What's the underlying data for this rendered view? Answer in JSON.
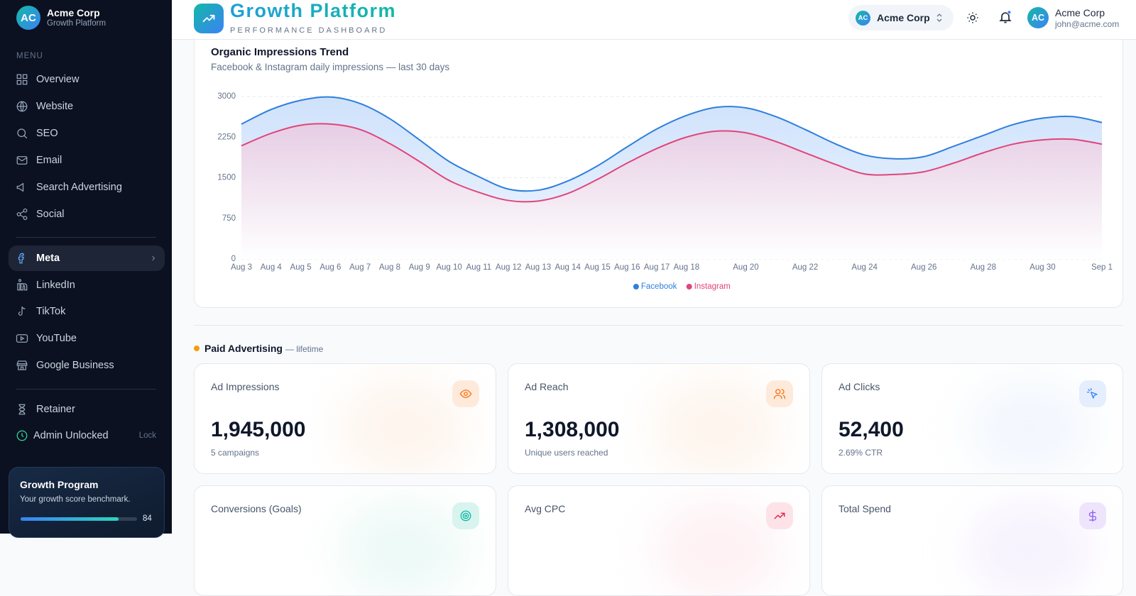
{
  "sidebar": {
    "brand": {
      "avatar": "AC",
      "name": "Acme Corp",
      "subtitle": "Growth Platform"
    },
    "menu_label": "MENU",
    "items": [
      {
        "label": "Overview"
      },
      {
        "label": "Website"
      },
      {
        "label": "SEO"
      },
      {
        "label": "Email"
      },
      {
        "label": "Search Advertising"
      },
      {
        "label": "Social"
      },
      {
        "label": "Meta",
        "active": true
      },
      {
        "label": "LinkedIn"
      },
      {
        "label": "TikTok"
      },
      {
        "label": "YouTube"
      },
      {
        "label": "Google Business"
      }
    ],
    "footer_items": [
      {
        "label": "Retainer"
      }
    ],
    "admin": {
      "label": "Admin Unlocked",
      "action": "Lock"
    },
    "growth_card": {
      "title": "Growth Program",
      "text": "Your growth score benchmark.",
      "score": 84
    }
  },
  "header": {
    "title": "Growth Platform",
    "subtitle": "PERFORMANCE DASHBOARD",
    "org": {
      "avatar": "AC",
      "name": "Acme Corp"
    },
    "user": {
      "avatar": "AC",
      "name": "Acme Corp",
      "email": "john@acme.com"
    }
  },
  "chart_data": {
    "type": "area",
    "title": "Organic Impressions Trend",
    "subtitle": "Facebook & Instagram daily impressions — last 30 days",
    "categories": [
      "Aug 3",
      "Aug 4",
      "Aug 5",
      "Aug 6",
      "Aug 7",
      "Aug 8",
      "Aug 9",
      "Aug 10",
      "Aug 11",
      "Aug 12",
      "Aug 13",
      "Aug 14",
      "Aug 15",
      "Aug 16",
      "Aug 17",
      "Aug 18",
      null,
      "Aug 20",
      null,
      "Aug 22",
      null,
      "Aug 24",
      null,
      "Aug 26",
      null,
      "Aug 28",
      null,
      "Aug 30",
      null,
      "Sep 1"
    ],
    "series": [
      {
        "name": "Facebook",
        "color": "#2f7fdc",
        "values": [
          2490,
          2760,
          2930,
          2990,
          2870,
          2590,
          2200,
          1800,
          1520,
          1290,
          1270,
          1440,
          1720,
          2070,
          2400,
          2650,
          2800,
          2790,
          2630,
          2390,
          2130,
          1920,
          1850,
          1890,
          2080,
          2280,
          2480,
          2600,
          2630,
          2520
        ]
      },
      {
        "name": "Instagram",
        "color": "#e0457b",
        "values": [
          2090,
          2320,
          2470,
          2490,
          2390,
          2130,
          1800,
          1450,
          1230,
          1080,
          1070,
          1210,
          1470,
          1770,
          2040,
          2250,
          2360,
          2330,
          2170,
          1960,
          1750,
          1570,
          1560,
          1610,
          1770,
          1960,
          2120,
          2200,
          2210,
          2120
        ]
      }
    ],
    "ylim": [
      0,
      3000
    ],
    "yticks": [
      0,
      750,
      1500,
      2250,
      3000
    ],
    "grid": true,
    "legend": "bottom"
  },
  "paid": {
    "title": "Paid Advertising",
    "suffix": "— lifetime",
    "cards": [
      {
        "label": "Ad Impressions",
        "value": "1,945,000",
        "sub": "5 campaigns"
      },
      {
        "label": "Ad Reach",
        "value": "1,308,000",
        "sub": "Unique users reached"
      },
      {
        "label": "Ad Clicks",
        "value": "52,400",
        "sub": "2.69% CTR"
      },
      {
        "label": "Conversions (Goals)"
      },
      {
        "label": "Avg CPC"
      },
      {
        "label": "Total Spend"
      }
    ]
  }
}
